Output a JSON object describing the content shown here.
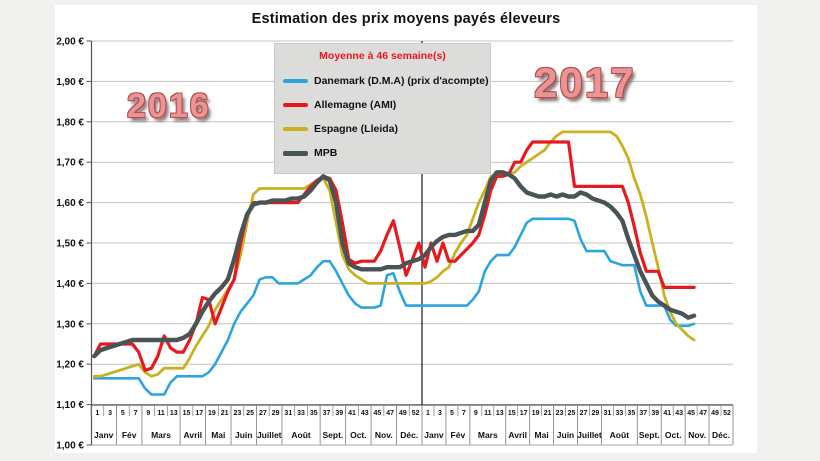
{
  "title": "Estimation des prix moyens payés éleveurs",
  "legend": {
    "title": "Moyenne à  46 semaine(s)"
  },
  "year_labels": [
    {
      "text": "2016"
    },
    {
      "text": "2017"
    }
  ],
  "chart_data": {
    "type": "line",
    "title": "Estimation des prix moyens payés éleveurs",
    "y_axis": {
      "min": 1.0,
      "max": 2.0,
      "step": 0.1,
      "unit": "€",
      "tick_labels": [
        "2,00 €",
        "1,90 €",
        "1,80 €",
        "1,70 €",
        "1,60 €",
        "1,50 €",
        "1,40 €",
        "1,30 €",
        "1,20 €",
        "1,10 €",
        "1,00 €"
      ]
    },
    "x_axis": {
      "years": [
        "2016",
        "2017"
      ],
      "week_tick_labels": [
        "1",
        "3",
        "5",
        "7",
        "9",
        "11",
        "13",
        "15",
        "17",
        "19",
        "21",
        "23",
        "25",
        "27",
        "29",
        "31",
        "33",
        "35",
        "37",
        "39",
        "41",
        "43",
        "45",
        "47",
        "49",
        "52"
      ],
      "months": [
        {
          "label": "Janv",
          "weeks": 4
        },
        {
          "label": "Fév",
          "weeks": 4
        },
        {
          "label": "Mars",
          "weeks": 6
        },
        {
          "label": "Avril",
          "weeks": 4
        },
        {
          "label": "Mai",
          "weeks": 4
        },
        {
          "label": "Juin",
          "weeks": 4
        },
        {
          "label": "Juillet",
          "weeks": 4
        },
        {
          "label": "Août",
          "weeks": 6
        },
        {
          "label": "Sept.",
          "weeks": 4
        },
        {
          "label": "Oct.",
          "weeks": 4
        },
        {
          "label": "Nov.",
          "weeks": 4
        },
        {
          "label": "Déc.",
          "weeks": 4
        }
      ]
    },
    "series": [
      {
        "key": "danemark",
        "name": "Danemark (D.M.A) (prix d'acompte)",
        "color": "#2CA5DE",
        "values_2016": [
          1.165,
          1.165,
          1.165,
          1.165,
          1.165,
          1.165,
          1.165,
          1.165,
          1.14,
          1.125,
          1.125,
          1.125,
          1.155,
          1.17,
          1.17,
          1.17,
          1.17,
          1.17,
          1.18,
          1.2,
          1.23,
          1.26,
          1.3,
          1.33,
          1.35,
          1.37,
          1.41,
          1.415,
          1.415,
          1.4,
          1.4,
          1.4,
          1.4,
          1.41,
          1.42,
          1.44,
          1.455,
          1.455,
          1.43,
          1.4,
          1.37,
          1.35,
          1.34,
          1.34,
          1.34,
          1.345,
          1.42,
          1.425,
          1.38,
          1.345,
          1.345,
          1.345
        ],
        "values_2017": [
          1.345,
          1.345,
          1.345,
          1.345,
          1.345,
          1.345,
          1.345,
          1.345,
          1.36,
          1.38,
          1.43,
          1.455,
          1.47,
          1.47,
          1.47,
          1.49,
          1.52,
          1.55,
          1.56,
          1.56,
          1.56,
          1.56,
          1.56,
          1.56,
          1.56,
          1.555,
          1.51,
          1.48,
          1.48,
          1.48,
          1.48,
          1.455,
          1.45,
          1.445,
          1.445,
          1.445,
          1.38,
          1.345,
          1.345,
          1.345,
          1.345,
          1.31,
          1.295,
          1.295,
          1.295,
          1.3
        ]
      },
      {
        "key": "espagne",
        "name": "Espagne (Lleida)",
        "color": "#C9B120",
        "values_2016": [
          1.17,
          1.17,
          1.175,
          1.18,
          1.185,
          1.19,
          1.195,
          1.2,
          1.18,
          1.17,
          1.175,
          1.19,
          1.19,
          1.19,
          1.19,
          1.215,
          1.245,
          1.27,
          1.295,
          1.335,
          1.36,
          1.385,
          1.41,
          1.47,
          1.55,
          1.62,
          1.635,
          1.635,
          1.635,
          1.635,
          1.635,
          1.635,
          1.635,
          1.635,
          1.645,
          1.655,
          1.66,
          1.63,
          1.55,
          1.47,
          1.435,
          1.42,
          1.41,
          1.4,
          1.4,
          1.4,
          1.4,
          1.4,
          1.4,
          1.4,
          1.4,
          1.4
        ],
        "values_2017": [
          1.4,
          1.405,
          1.415,
          1.43,
          1.44,
          1.475,
          1.5,
          1.52,
          1.56,
          1.6,
          1.63,
          1.665,
          1.67,
          1.67,
          1.67,
          1.675,
          1.69,
          1.7,
          1.71,
          1.72,
          1.73,
          1.75,
          1.765,
          1.775,
          1.775,
          1.775,
          1.775,
          1.775,
          1.775,
          1.775,
          1.775,
          1.775,
          1.765,
          1.74,
          1.71,
          1.66,
          1.62,
          1.565,
          1.5,
          1.44,
          1.37,
          1.33,
          1.3,
          1.285,
          1.27,
          1.26
        ]
      },
      {
        "key": "allemagne",
        "name": "Allemagne (AMI)",
        "color": "#E8191D",
        "values_2016": [
          1.22,
          1.25,
          1.25,
          1.25,
          1.25,
          1.25,
          1.25,
          1.23,
          1.185,
          1.19,
          1.22,
          1.27,
          1.24,
          1.23,
          1.23,
          1.26,
          1.3,
          1.365,
          1.36,
          1.3,
          1.34,
          1.38,
          1.41,
          1.5,
          1.57,
          1.6,
          1.6,
          1.6,
          1.6,
          1.6,
          1.6,
          1.6,
          1.6,
          1.62,
          1.64,
          1.655,
          1.665,
          1.66,
          1.63,
          1.55,
          1.46,
          1.45,
          1.455,
          1.455,
          1.455,
          1.48,
          1.52,
          1.555,
          1.49,
          1.42,
          1.46,
          1.5
        ],
        "values_2017": [
          1.44,
          1.5,
          1.455,
          1.5,
          1.455,
          1.455,
          1.47,
          1.485,
          1.5,
          1.52,
          1.57,
          1.63,
          1.665,
          1.665,
          1.67,
          1.7,
          1.7,
          1.73,
          1.75,
          1.75,
          1.75,
          1.75,
          1.75,
          1.75,
          1.75,
          1.64,
          1.64,
          1.64,
          1.64,
          1.64,
          1.64,
          1.64,
          1.64,
          1.64,
          1.6,
          1.54,
          1.475,
          1.43,
          1.43,
          1.43,
          1.39,
          1.39,
          1.39,
          1.39,
          1.39,
          1.39
        ]
      },
      {
        "key": "mpb",
        "name": "MPB",
        "color": "#4A5456",
        "values_2016": [
          1.22,
          1.235,
          1.24,
          1.245,
          1.25,
          1.255,
          1.26,
          1.26,
          1.26,
          1.26,
          1.26,
          1.26,
          1.26,
          1.26,
          1.265,
          1.275,
          1.3,
          1.33,
          1.355,
          1.375,
          1.39,
          1.41,
          1.46,
          1.52,
          1.57,
          1.595,
          1.6,
          1.6,
          1.605,
          1.605,
          1.605,
          1.61,
          1.61,
          1.615,
          1.63,
          1.65,
          1.665,
          1.655,
          1.6,
          1.5,
          1.45,
          1.44,
          1.435,
          1.435,
          1.435,
          1.435,
          1.44,
          1.44,
          1.44,
          1.45,
          1.455,
          1.46
        ],
        "values_2017": [
          1.47,
          1.49,
          1.505,
          1.515,
          1.52,
          1.52,
          1.525,
          1.53,
          1.53,
          1.545,
          1.6,
          1.655,
          1.675,
          1.675,
          1.67,
          1.66,
          1.64,
          1.625,
          1.62,
          1.615,
          1.615,
          1.62,
          1.615,
          1.62,
          1.615,
          1.615,
          1.625,
          1.62,
          1.61,
          1.605,
          1.6,
          1.59,
          1.575,
          1.555,
          1.51,
          1.47,
          1.43,
          1.4,
          1.37,
          1.355,
          1.345,
          1.335,
          1.33,
          1.325,
          1.315,
          1.32
        ]
      }
    ]
  }
}
